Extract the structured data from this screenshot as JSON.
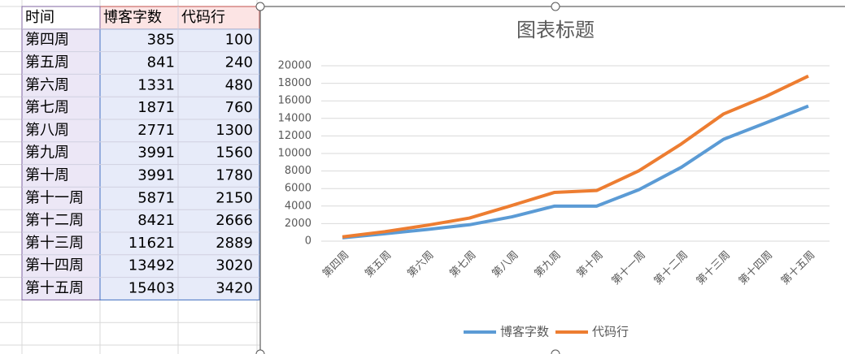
{
  "table": {
    "header": "时间"
  },
  "chart_data": {
    "type": "line",
    "stacked": true,
    "title": "图表标题",
    "categories": [
      "第四周",
      "第五周",
      "第六周",
      "第七周",
      "第八周",
      "第九周",
      "第十周",
      "第十一周",
      "第十二周",
      "第十三周",
      "第十四周",
      "第十五周"
    ],
    "series": [
      {
        "name": "博客字数",
        "color": "#5b9bd5",
        "values": [
          385,
          841,
          1331,
          1871,
          2771,
          3991,
          3991,
          5871,
          8421,
          11621,
          13492,
          15403
        ]
      },
      {
        "name": "代码行",
        "color": "#ed7d31",
        "values": [
          100,
          240,
          480,
          760,
          1300,
          1560,
          1780,
          2150,
          2666,
          2889,
          3020,
          3420
        ]
      }
    ],
    "ylim": [
      0,
      20000
    ],
    "yticks": [
      0,
      2000,
      4000,
      6000,
      8000,
      10000,
      12000,
      14000,
      16000,
      18000,
      20000
    ],
    "grid": true,
    "legend": "bottom"
  }
}
